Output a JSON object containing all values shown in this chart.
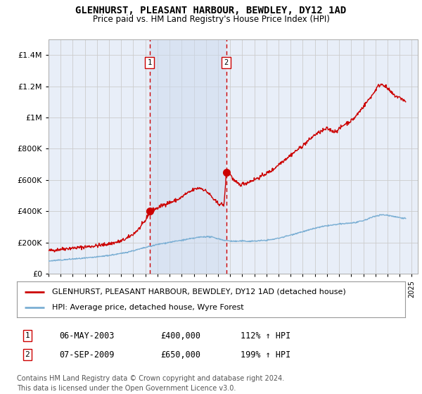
{
  "title": "GLENHURST, PLEASANT HARBOUR, BEWDLEY, DY12 1AD",
  "subtitle": "Price paid vs. HM Land Registry's House Price Index (HPI)",
  "legend_line1": "GLENHURST, PLEASANT HARBOUR, BEWDLEY, DY12 1AD (detached house)",
  "legend_line2": "HPI: Average price, detached house, Wyre Forest",
  "marker1_date": "06-MAY-2003",
  "marker1_price": "£400,000",
  "marker1_hpi": "112% ↑ HPI",
  "marker1_year": 2003.35,
  "marker1_value": 400000,
  "marker2_date": "07-SEP-2009",
  "marker2_price": "£650,000",
  "marker2_hpi": "199% ↑ HPI",
  "marker2_year": 2009.68,
  "marker2_value": 650000,
  "ylim": [
    0,
    1500000
  ],
  "xlim_start": 1995,
  "xlim_end": 2025.5,
  "background_color": "#ffffff",
  "grid_color": "#cccccc",
  "plot_bg_color": "#e8eef8",
  "red_line_color": "#cc0000",
  "blue_line_color": "#7bafd4",
  "footnote": "Contains HM Land Registry data © Crown copyright and database right 2024.\nThis data is licensed under the Open Government Licence v3.0.",
  "red_keypoints": [
    [
      1995.0,
      148000
    ],
    [
      1995.5,
      152000
    ],
    [
      1996.0,
      158000
    ],
    [
      1996.5,
      162000
    ],
    [
      1997.0,
      165000
    ],
    [
      1997.5,
      168000
    ],
    [
      1998.0,
      172000
    ],
    [
      1998.5,
      176000
    ],
    [
      1999.0,
      180000
    ],
    [
      1999.5,
      185000
    ],
    [
      2000.0,
      192000
    ],
    [
      2000.5,
      200000
    ],
    [
      2001.0,
      210000
    ],
    [
      2001.5,
      228000
    ],
    [
      2002.0,
      255000
    ],
    [
      2002.5,
      290000
    ],
    [
      2003.0,
      340000
    ],
    [
      2003.35,
      400000
    ],
    [
      2003.6,
      410000
    ],
    [
      2004.0,
      420000
    ],
    [
      2004.3,
      435000
    ],
    [
      2004.6,
      445000
    ],
    [
      2004.9,
      455000
    ],
    [
      2005.2,
      460000
    ],
    [
      2005.5,
      470000
    ],
    [
      2005.8,
      480000
    ],
    [
      2006.0,
      490000
    ],
    [
      2006.3,
      510000
    ],
    [
      2006.6,
      520000
    ],
    [
      2006.9,
      535000
    ],
    [
      2007.2,
      545000
    ],
    [
      2007.5,
      550000
    ],
    [
      2007.8,
      540000
    ],
    [
      2008.0,
      530000
    ],
    [
      2008.3,
      510000
    ],
    [
      2008.5,
      490000
    ],
    [
      2008.7,
      470000
    ],
    [
      2009.0,
      450000
    ],
    [
      2009.3,
      445000
    ],
    [
      2009.5,
      440000
    ],
    [
      2009.68,
      650000
    ],
    [
      2009.9,
      660000
    ],
    [
      2010.0,
      640000
    ],
    [
      2010.2,
      610000
    ],
    [
      2010.4,
      590000
    ],
    [
      2010.6,
      580000
    ],
    [
      2010.8,
      570000
    ],
    [
      2011.0,
      575000
    ],
    [
      2011.3,
      580000
    ],
    [
      2011.6,
      590000
    ],
    [
      2011.9,
      600000
    ],
    [
      2012.2,
      610000
    ],
    [
      2012.5,
      620000
    ],
    [
      2012.8,
      635000
    ],
    [
      2013.2,
      650000
    ],
    [
      2013.6,
      670000
    ],
    [
      2014.0,
      700000
    ],
    [
      2014.5,
      730000
    ],
    [
      2015.0,
      760000
    ],
    [
      2015.5,
      790000
    ],
    [
      2016.0,
      820000
    ],
    [
      2016.5,
      855000
    ],
    [
      2017.0,
      890000
    ],
    [
      2017.5,
      910000
    ],
    [
      2018.0,
      930000
    ],
    [
      2018.3,
      920000
    ],
    [
      2018.6,
      910000
    ],
    [
      2018.9,
      920000
    ],
    [
      2019.2,
      940000
    ],
    [
      2019.5,
      960000
    ],
    [
      2019.8,
      970000
    ],
    [
      2020.0,
      980000
    ],
    [
      2020.3,
      1000000
    ],
    [
      2020.6,
      1030000
    ],
    [
      2020.9,
      1060000
    ],
    [
      2021.2,
      1090000
    ],
    [
      2021.5,
      1120000
    ],
    [
      2021.8,
      1150000
    ],
    [
      2022.0,
      1175000
    ],
    [
      2022.2,
      1200000
    ],
    [
      2022.4,
      1210000
    ],
    [
      2022.6,
      1215000
    ],
    [
      2022.8,
      1200000
    ],
    [
      2023.0,
      1185000
    ],
    [
      2023.3,
      1160000
    ],
    [
      2023.6,
      1140000
    ],
    [
      2023.9,
      1130000
    ],
    [
      2024.2,
      1120000
    ],
    [
      2024.5,
      1100000
    ]
  ],
  "blue_keypoints": [
    [
      1995.0,
      82000
    ],
    [
      1996.0,
      88000
    ],
    [
      1997.0,
      95000
    ],
    [
      1998.0,
      100000
    ],
    [
      1999.0,
      108000
    ],
    [
      2000.0,
      118000
    ],
    [
      2001.0,
      130000
    ],
    [
      2002.0,
      148000
    ],
    [
      2003.0,
      168000
    ],
    [
      2004.0,
      188000
    ],
    [
      2005.0,
      202000
    ],
    [
      2006.0,
      215000
    ],
    [
      2007.0,
      228000
    ],
    [
      2007.5,
      235000
    ],
    [
      2008.0,
      238000
    ],
    [
      2008.5,
      235000
    ],
    [
      2009.0,
      225000
    ],
    [
      2009.5,
      215000
    ],
    [
      2010.0,
      210000
    ],
    [
      2010.5,
      208000
    ],
    [
      2011.0,
      210000
    ],
    [
      2011.5,
      208000
    ],
    [
      2012.0,
      210000
    ],
    [
      2012.5,
      212000
    ],
    [
      2013.0,
      215000
    ],
    [
      2013.5,
      220000
    ],
    [
      2014.0,
      228000
    ],
    [
      2014.5,
      238000
    ],
    [
      2015.0,
      248000
    ],
    [
      2015.5,
      260000
    ],
    [
      2016.0,
      270000
    ],
    [
      2016.5,
      280000
    ],
    [
      2017.0,
      292000
    ],
    [
      2017.5,
      300000
    ],
    [
      2018.0,
      308000
    ],
    [
      2018.5,
      312000
    ],
    [
      2019.0,
      318000
    ],
    [
      2019.5,
      322000
    ],
    [
      2020.0,
      325000
    ],
    [
      2020.5,
      330000
    ],
    [
      2021.0,
      340000
    ],
    [
      2021.5,
      355000
    ],
    [
      2022.0,
      370000
    ],
    [
      2022.5,
      378000
    ],
    [
      2023.0,
      375000
    ],
    [
      2023.5,
      368000
    ],
    [
      2024.0,
      360000
    ],
    [
      2024.5,
      355000
    ]
  ]
}
